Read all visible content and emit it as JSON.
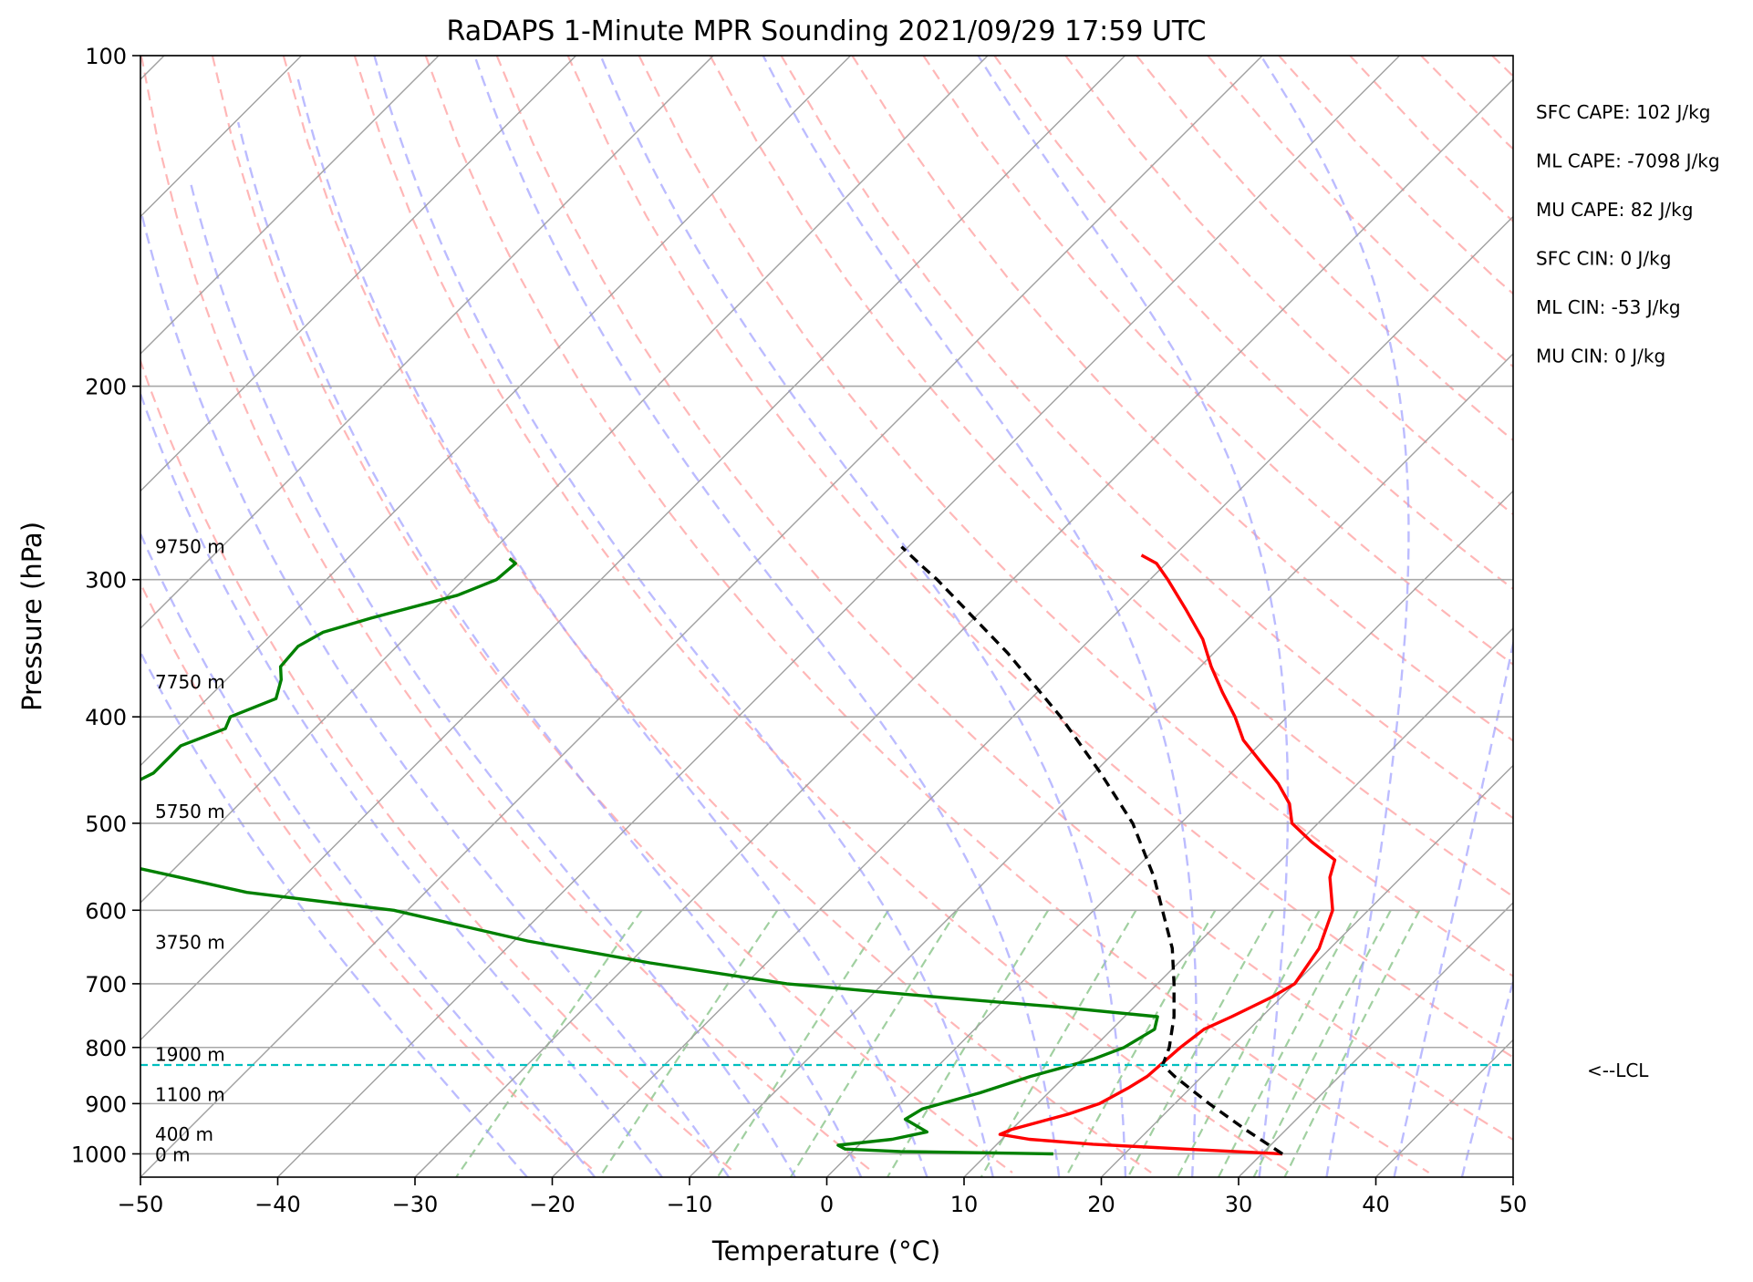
{
  "chart_data": {
    "type": "line",
    "title": "RaDAPS 1-Minute MPR Sounding 2021/09/29 17:59 UTC",
    "xlabel": "Temperature (°C)",
    "ylabel": "Pressure (hPa)",
    "xlim": [
      -50,
      50
    ],
    "ylim": [
      1050,
      100
    ],
    "y_scale": "log",
    "skew": "skew-T",
    "grid": true,
    "x_ticks": [
      -50,
      -40,
      -30,
      -20,
      -10,
      0,
      10,
      20,
      30,
      40,
      50
    ],
    "y_ticks": [
      100,
      200,
      300,
      400,
      500,
      600,
      700,
      800,
      900,
      1000
    ],
    "x_tick_labels": [
      "−50",
      "−40",
      "−30",
      "−20",
      "−10",
      "0",
      "10",
      "20",
      "30",
      "40",
      "50"
    ],
    "y_tick_labels": [
      "100",
      "200",
      "300",
      "400",
      "500",
      "600",
      "700",
      "800",
      "900",
      "1000"
    ],
    "series": [
      {
        "key": "temperature",
        "color": "#ff0000",
        "style": "solid",
        "points": [
          [
            1000,
            31.5
          ],
          [
            990,
            24
          ],
          [
            980,
            17
          ],
          [
            970,
            12
          ],
          [
            960,
            9.5
          ],
          [
            950,
            10
          ],
          [
            920,
            13
          ],
          [
            900,
            14.5
          ],
          [
            870,
            15.5
          ],
          [
            850,
            16
          ],
          [
            800,
            16.3
          ],
          [
            770,
            16.7
          ],
          [
            750,
            17.8
          ],
          [
            720,
            19.3
          ],
          [
            700,
            20
          ],
          [
            650,
            19.2
          ],
          [
            600,
            17.4
          ],
          [
            560,
            14.8
          ],
          [
            540,
            13.9
          ],
          [
            520,
            10.9
          ],
          [
            500,
            8.1
          ],
          [
            480,
            6.5
          ],
          [
            460,
            4.2
          ],
          [
            440,
            1.4
          ],
          [
            420,
            -1.5
          ],
          [
            400,
            -3.8
          ],
          [
            380,
            -6.5
          ],
          [
            360,
            -9.2
          ],
          [
            340,
            -11.8
          ],
          [
            320,
            -15.1
          ],
          [
            300,
            -18.7
          ],
          [
            290,
            -20.7
          ],
          [
            285,
            -22.4
          ]
        ]
      },
      {
        "key": "dewpoint",
        "color": "#008000",
        "style": "solid",
        "points": [
          [
            1000,
            14.8
          ],
          [
            995,
            3.5
          ],
          [
            990,
            -0.7
          ],
          [
            982,
            -1.5
          ],
          [
            970,
            2
          ],
          [
            955,
            4
          ],
          [
            930,
            1.5
          ],
          [
            910,
            2
          ],
          [
            880,
            5
          ],
          [
            850,
            7.5
          ],
          [
            820,
            10.8
          ],
          [
            800,
            12.2
          ],
          [
            770,
            13.1
          ],
          [
            750,
            12.4
          ],
          [
            735,
            4.5
          ],
          [
            720,
            -5
          ],
          [
            700,
            -17
          ],
          [
            670,
            -28.5
          ],
          [
            640,
            -39
          ],
          [
            600,
            -51
          ],
          [
            578,
            -63
          ],
          [
            560,
            -69
          ],
          [
            540,
            -76
          ],
          [
            530,
            -80
          ],
          [
            500,
            -82
          ],
          [
            490,
            -81.5
          ],
          [
            470,
            -80
          ],
          [
            450,
            -78.5
          ],
          [
            425,
            -78.5
          ],
          [
            410,
            -76.5
          ],
          [
            400,
            -77
          ],
          [
            385,
            -75
          ],
          [
            370,
            -76
          ],
          [
            360,
            -77
          ],
          [
            345,
            -77.2
          ],
          [
            335,
            -76.4
          ],
          [
            325,
            -73.9
          ],
          [
            310,
            -69.3
          ],
          [
            300,
            -67.6
          ],
          [
            290,
            -67.4
          ],
          [
            287,
            -68.2
          ]
        ]
      },
      {
        "key": "parcel",
        "color": "#000000",
        "style": "dashed",
        "points": [
          [
            1000,
            31.5
          ],
          [
            950,
            27
          ],
          [
            900,
            22.5
          ],
          [
            850,
            18
          ],
          [
            830,
            16.3
          ],
          [
            800,
            15.5
          ],
          [
            750,
            13.6
          ],
          [
            700,
            11.2
          ],
          [
            650,
            8.5
          ],
          [
            600,
            5
          ],
          [
            560,
            2
          ],
          [
            500,
            -3.5
          ],
          [
            450,
            -9.5
          ],
          [
            400,
            -16.5
          ],
          [
            350,
            -25
          ],
          [
            300,
            -35.5
          ],
          [
            290,
            -38
          ],
          [
            280,
            -40.5
          ]
        ]
      }
    ],
    "lcl": {
      "pressure": 830,
      "label": "<--LCL",
      "color": "#00bfbf"
    },
    "height_labels": [
      {
        "text": "9750 m",
        "p": 280
      },
      {
        "text": "7750 m",
        "p": 372
      },
      {
        "text": "5750 m",
        "p": 488
      },
      {
        "text": "3750 m",
        "p": 642
      },
      {
        "text": "1900 m",
        "p": 812
      },
      {
        "text": "1100 m",
        "p": 883
      },
      {
        "text": "400 m",
        "p": 960
      },
      {
        "text": "0 m",
        "p": 1002
      }
    ],
    "indices": [
      "SFC CAPE: 102 J/kg",
      "ML CAPE: -7098 J/kg",
      "MU CAPE: 82 J/kg",
      "SFC CIN: 0 J/kg",
      "ML CIN: -53 J/kg",
      "MU CIN: 0 J/kg"
    ],
    "reference_line_colors": {
      "isotherm": "#a0a0a0",
      "dry_adiabat": "#ff9f9f",
      "moist_adiabat": "#a0a0ff",
      "mixing_ratio": "#90c890"
    }
  }
}
